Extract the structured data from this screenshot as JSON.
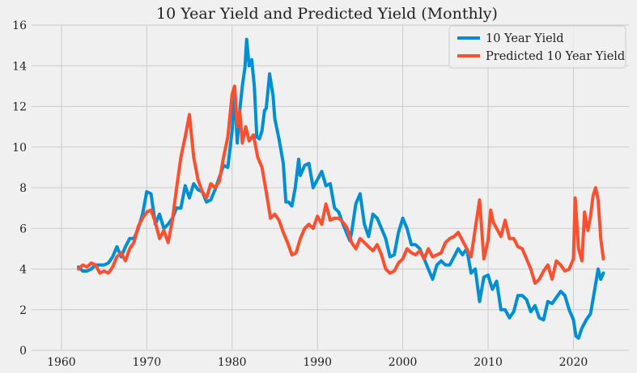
{
  "chart_data": {
    "type": "line",
    "title": "10 Year Yield and Predicted Yield (Monthly)",
    "xlabel": "",
    "ylabel": "",
    "xlim": [
      1956.5,
      2026.5
    ],
    "ylim": [
      0,
      16
    ],
    "grid": true,
    "legend_position": "top-right",
    "x_ticks": [
      1960,
      1970,
      1980,
      1990,
      2000,
      2010,
      2020
    ],
    "y_ticks": [
      0,
      2,
      4,
      6,
      8,
      10,
      12,
      14,
      16
    ],
    "series": [
      {
        "name": "10 Year Yield",
        "color": "#008fd5",
        "points": [
          [
            1962.0,
            4.1
          ],
          [
            1962.5,
            3.9
          ],
          [
            1963.0,
            3.9
          ],
          [
            1963.5,
            4.0
          ],
          [
            1964.0,
            4.2
          ],
          [
            1964.5,
            4.2
          ],
          [
            1965.0,
            4.2
          ],
          [
            1965.5,
            4.3
          ],
          [
            1966.0,
            4.6
          ],
          [
            1966.5,
            5.1
          ],
          [
            1967.0,
            4.6
          ],
          [
            1967.5,
            5.1
          ],
          [
            1968.0,
            5.5
          ],
          [
            1968.5,
            5.5
          ],
          [
            1969.0,
            6.0
          ],
          [
            1969.5,
            6.7
          ],
          [
            1970.0,
            7.8
          ],
          [
            1970.5,
            7.7
          ],
          [
            1971.0,
            6.2
          ],
          [
            1971.5,
            6.7
          ],
          [
            1972.0,
            6.0
          ],
          [
            1972.5,
            6.2
          ],
          [
            1973.0,
            6.5
          ],
          [
            1973.5,
            7.0
          ],
          [
            1974.0,
            7.0
          ],
          [
            1974.5,
            8.1
          ],
          [
            1975.0,
            7.5
          ],
          [
            1975.5,
            8.2
          ],
          [
            1976.0,
            7.9
          ],
          [
            1976.5,
            7.8
          ],
          [
            1977.0,
            7.3
          ],
          [
            1977.5,
            7.4
          ],
          [
            1978.0,
            7.9
          ],
          [
            1978.5,
            8.5
          ],
          [
            1979.0,
            9.1
          ],
          [
            1979.5,
            9.0
          ],
          [
            1980.0,
            10.8
          ],
          [
            1980.3,
            12.7
          ],
          [
            1980.6,
            10.2
          ],
          [
            1980.9,
            11.8
          ],
          [
            1981.2,
            13.0
          ],
          [
            1981.5,
            13.9
          ],
          [
            1981.7,
            15.3
          ],
          [
            1982.0,
            14.0
          ],
          [
            1982.3,
            14.3
          ],
          [
            1982.6,
            13.0
          ],
          [
            1982.9,
            10.5
          ],
          [
            1983.2,
            10.4
          ],
          [
            1983.5,
            10.8
          ],
          [
            1983.8,
            11.8
          ],
          [
            1984.0,
            11.9
          ],
          [
            1984.4,
            13.6
          ],
          [
            1984.8,
            12.5
          ],
          [
            1985.0,
            11.4
          ],
          [
            1985.5,
            10.4
          ],
          [
            1986.0,
            9.2
          ],
          [
            1986.3,
            7.3
          ],
          [
            1986.6,
            7.3
          ],
          [
            1987.0,
            7.1
          ],
          [
            1987.4,
            8.0
          ],
          [
            1987.8,
            9.4
          ],
          [
            1988.0,
            8.6
          ],
          [
            1988.5,
            9.1
          ],
          [
            1989.0,
            9.2
          ],
          [
            1989.5,
            8.0
          ],
          [
            1990.0,
            8.4
          ],
          [
            1990.5,
            8.8
          ],
          [
            1991.0,
            8.1
          ],
          [
            1991.5,
            8.2
          ],
          [
            1992.0,
            7.0
          ],
          [
            1992.5,
            6.8
          ],
          [
            1993.0,
            6.2
          ],
          [
            1993.8,
            5.4
          ],
          [
            1994.0,
            5.8
          ],
          [
            1994.5,
            7.2
          ],
          [
            1995.0,
            7.7
          ],
          [
            1995.5,
            6.2
          ],
          [
            1996.0,
            5.6
          ],
          [
            1996.5,
            6.7
          ],
          [
            1997.0,
            6.5
          ],
          [
            1997.5,
            6.0
          ],
          [
            1998.0,
            5.5
          ],
          [
            1998.5,
            4.6
          ],
          [
            1999.0,
            4.7
          ],
          [
            1999.5,
            5.8
          ],
          [
            2000.0,
            6.5
          ],
          [
            2000.5,
            6.0
          ],
          [
            2001.0,
            5.2
          ],
          [
            2001.5,
            5.2
          ],
          [
            2002.0,
            5.0
          ],
          [
            2002.5,
            4.5
          ],
          [
            2003.0,
            4.0
          ],
          [
            2003.5,
            3.5
          ],
          [
            2004.0,
            4.2
          ],
          [
            2004.5,
            4.4
          ],
          [
            2005.0,
            4.2
          ],
          [
            2005.5,
            4.2
          ],
          [
            2006.0,
            4.6
          ],
          [
            2006.5,
            5.0
          ],
          [
            2007.0,
            4.7
          ],
          [
            2007.5,
            5.0
          ],
          [
            2008.0,
            3.8
          ],
          [
            2008.5,
            4.0
          ],
          [
            2009.0,
            2.4
          ],
          [
            2009.5,
            3.6
          ],
          [
            2010.0,
            3.7
          ],
          [
            2010.5,
            3.0
          ],
          [
            2011.0,
            3.4
          ],
          [
            2011.5,
            2.0
          ],
          [
            2012.0,
            2.0
          ],
          [
            2012.5,
            1.6
          ],
          [
            2013.0,
            1.9
          ],
          [
            2013.5,
            2.7
          ],
          [
            2014.0,
            2.7
          ],
          [
            2014.5,
            2.5
          ],
          [
            2015.0,
            1.9
          ],
          [
            2015.5,
            2.2
          ],
          [
            2016.0,
            1.6
          ],
          [
            2016.5,
            1.5
          ],
          [
            2017.0,
            2.4
          ],
          [
            2017.5,
            2.3
          ],
          [
            2018.0,
            2.6
          ],
          [
            2018.5,
            2.9
          ],
          [
            2019.0,
            2.7
          ],
          [
            2019.5,
            2.0
          ],
          [
            2020.0,
            1.5
          ],
          [
            2020.3,
            0.7
          ],
          [
            2020.6,
            0.6
          ],
          [
            2021.0,
            1.1
          ],
          [
            2021.5,
            1.5
          ],
          [
            2022.0,
            1.8
          ],
          [
            2022.5,
            3.0
          ],
          [
            2022.9,
            4.0
          ],
          [
            2023.2,
            3.5
          ],
          [
            2023.5,
            3.8
          ]
        ]
      },
      {
        "name": "Predicted 10 Year Yield",
        "color": "#fc4f30",
        "points": [
          [
            1962.0,
            4.0
          ],
          [
            1962.5,
            4.2
          ],
          [
            1963.0,
            4.1
          ],
          [
            1963.5,
            4.3
          ],
          [
            1964.0,
            4.2
          ],
          [
            1964.5,
            3.8
          ],
          [
            1965.0,
            3.9
          ],
          [
            1965.5,
            3.8
          ],
          [
            1966.0,
            4.1
          ],
          [
            1966.5,
            4.6
          ],
          [
            1967.0,
            4.8
          ],
          [
            1967.5,
            4.4
          ],
          [
            1968.0,
            5.0
          ],
          [
            1968.5,
            5.3
          ],
          [
            1969.0,
            6.1
          ],
          [
            1969.5,
            6.5
          ],
          [
            1970.0,
            6.8
          ],
          [
            1970.5,
            6.9
          ],
          [
            1971.0,
            6.3
          ],
          [
            1971.5,
            5.5
          ],
          [
            1972.0,
            5.9
          ],
          [
            1972.5,
            5.3
          ],
          [
            1973.0,
            6.4
          ],
          [
            1973.5,
            8.0
          ],
          [
            1974.0,
            9.5
          ],
          [
            1974.5,
            10.5
          ],
          [
            1975.0,
            11.6
          ],
          [
            1975.5,
            9.5
          ],
          [
            1976.0,
            8.4
          ],
          [
            1976.5,
            7.8
          ],
          [
            1977.0,
            7.5
          ],
          [
            1977.5,
            8.2
          ],
          [
            1978.0,
            8.0
          ],
          [
            1978.5,
            8.3
          ],
          [
            1979.0,
            9.5
          ],
          [
            1979.5,
            10.5
          ],
          [
            1980.0,
            12.6
          ],
          [
            1980.3,
            13.0
          ],
          [
            1980.6,
            11.0
          ],
          [
            1980.9,
            11.8
          ],
          [
            1981.2,
            10.2
          ],
          [
            1981.6,
            11.0
          ],
          [
            1982.0,
            10.3
          ],
          [
            1982.5,
            10.6
          ],
          [
            1983.0,
            9.5
          ],
          [
            1983.5,
            9.0
          ],
          [
            1984.0,
            7.8
          ],
          [
            1984.5,
            6.5
          ],
          [
            1985.0,
            6.7
          ],
          [
            1985.5,
            6.4
          ],
          [
            1986.0,
            5.8
          ],
          [
            1986.5,
            5.3
          ],
          [
            1987.0,
            4.7
          ],
          [
            1987.5,
            4.8
          ],
          [
            1988.0,
            5.5
          ],
          [
            1988.5,
            6.0
          ],
          [
            1989.0,
            6.2
          ],
          [
            1989.5,
            6.0
          ],
          [
            1990.0,
            6.6
          ],
          [
            1990.5,
            6.2
          ],
          [
            1991.0,
            7.2
          ],
          [
            1991.5,
            6.4
          ],
          [
            1992.0,
            6.5
          ],
          [
            1992.5,
            6.5
          ],
          [
            1993.0,
            6.3
          ],
          [
            1993.5,
            6.0
          ],
          [
            1994.0,
            5.3
          ],
          [
            1994.5,
            5.0
          ],
          [
            1995.0,
            5.5
          ],
          [
            1995.5,
            5.3
          ],
          [
            1996.0,
            5.1
          ],
          [
            1996.5,
            4.9
          ],
          [
            1997.0,
            5.2
          ],
          [
            1997.5,
            4.7
          ],
          [
            1998.0,
            4.0
          ],
          [
            1998.5,
            3.8
          ],
          [
            1999.0,
            3.9
          ],
          [
            1999.5,
            4.3
          ],
          [
            2000.0,
            4.5
          ],
          [
            2000.5,
            5.0
          ],
          [
            2001.0,
            4.8
          ],
          [
            2001.5,
            4.7
          ],
          [
            2002.0,
            4.9
          ],
          [
            2002.5,
            4.5
          ],
          [
            2003.0,
            5.0
          ],
          [
            2003.5,
            4.6
          ],
          [
            2004.0,
            4.7
          ],
          [
            2004.5,
            4.8
          ],
          [
            2005.0,
            5.3
          ],
          [
            2005.5,
            5.5
          ],
          [
            2006.0,
            5.6
          ],
          [
            2006.5,
            5.8
          ],
          [
            2007.0,
            5.4
          ],
          [
            2007.5,
            5.0
          ],
          [
            2008.0,
            4.6
          ],
          [
            2008.5,
            6.0
          ],
          [
            2009.0,
            7.4
          ],
          [
            2009.5,
            4.5
          ],
          [
            2010.0,
            5.4
          ],
          [
            2010.3,
            6.9
          ],
          [
            2010.6,
            6.3
          ],
          [
            2011.0,
            6.0
          ],
          [
            2011.5,
            5.6
          ],
          [
            2012.0,
            6.4
          ],
          [
            2012.5,
            5.5
          ],
          [
            2013.0,
            5.5
          ],
          [
            2013.5,
            5.1
          ],
          [
            2014.0,
            5.0
          ],
          [
            2014.5,
            4.5
          ],
          [
            2015.0,
            4.0
          ],
          [
            2015.5,
            3.3
          ],
          [
            2016.0,
            3.5
          ],
          [
            2016.5,
            3.9
          ],
          [
            2017.0,
            4.2
          ],
          [
            2017.5,
            3.5
          ],
          [
            2018.0,
            4.4
          ],
          [
            2018.5,
            4.2
          ],
          [
            2019.0,
            3.9
          ],
          [
            2019.5,
            4.0
          ],
          [
            2020.0,
            4.5
          ],
          [
            2020.2,
            7.5
          ],
          [
            2020.6,
            5.0
          ],
          [
            2021.0,
            4.4
          ],
          [
            2021.3,
            6.8
          ],
          [
            2021.7,
            5.9
          ],
          [
            2022.0,
            6.6
          ],
          [
            2022.3,
            7.6
          ],
          [
            2022.6,
            8.0
          ],
          [
            2022.9,
            7.4
          ],
          [
            2023.2,
            5.5
          ],
          [
            2023.5,
            4.5
          ]
        ]
      }
    ]
  }
}
